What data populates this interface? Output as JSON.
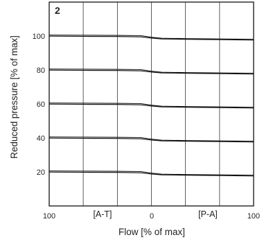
{
  "chart_data": {
    "type": "line",
    "panel_label": "2",
    "xlabel": "Flow [% of max]",
    "ylabel": "Reduced pressure [% of max]",
    "x_tick_labels": [
      "100",
      "0",
      "100"
    ],
    "region_labels": [
      "[A-T]",
      "[P-A]"
    ],
    "x_range": [
      -100,
      100
    ],
    "y_range": [
      0,
      120
    ],
    "y_ticks": [
      20,
      40,
      60,
      80,
      100
    ],
    "grid": true,
    "x_grid": [
      -100,
      -66.7,
      -33.3,
      0,
      33.3,
      66.7,
      100
    ],
    "series": [
      {
        "x": [
          -100,
          -66.7,
          -33.3,
          -10,
          0,
          10,
          33.3,
          66.7,
          100
        ],
        "lower": [
          99.9,
          99.8,
          99.7,
          99.5,
          98.8,
          98.3,
          98.1,
          97.9,
          97.6
        ],
        "upper": [
          100.6,
          100.5,
          100.4,
          100.2,
          99.3,
          98.7,
          98.5,
          98.3,
          98.1
        ]
      },
      {
        "x": [
          -100,
          -66.7,
          -33.3,
          -10,
          0,
          10,
          33.3,
          66.7,
          100
        ],
        "lower": [
          79.9,
          79.8,
          79.7,
          79.5,
          78.8,
          78.3,
          78.1,
          77.9,
          77.6
        ],
        "upper": [
          80.6,
          80.5,
          80.4,
          80.2,
          79.3,
          78.7,
          78.5,
          78.3,
          78.1
        ]
      },
      {
        "x": [
          -100,
          -66.7,
          -33.3,
          -10,
          0,
          10,
          33.3,
          66.7,
          100
        ],
        "lower": [
          59.9,
          59.8,
          59.7,
          59.5,
          58.8,
          58.3,
          58.1,
          57.9,
          57.6
        ],
        "upper": [
          60.6,
          60.5,
          60.4,
          60.2,
          59.3,
          58.7,
          58.5,
          58.3,
          58.1
        ]
      },
      {
        "x": [
          -100,
          -66.7,
          -33.3,
          -10,
          0,
          10,
          33.3,
          66.7,
          100
        ],
        "lower": [
          39.9,
          39.8,
          39.7,
          39.5,
          38.8,
          38.3,
          38.1,
          37.9,
          37.6
        ],
        "upper": [
          40.6,
          40.5,
          40.4,
          40.2,
          39.3,
          38.7,
          38.5,
          38.3,
          38.1
        ]
      },
      {
        "x": [
          -100,
          -66.7,
          -33.3,
          -10,
          0,
          10,
          33.3,
          66.7,
          100
        ],
        "lower": [
          19.9,
          19.8,
          19.7,
          19.5,
          18.8,
          18.3,
          18.1,
          17.9,
          17.6
        ],
        "upper": [
          20.6,
          20.5,
          20.4,
          20.2,
          19.3,
          18.7,
          18.5,
          18.3,
          18.1
        ]
      }
    ],
    "line_color": "#111111",
    "grid_color": "#333333"
  }
}
